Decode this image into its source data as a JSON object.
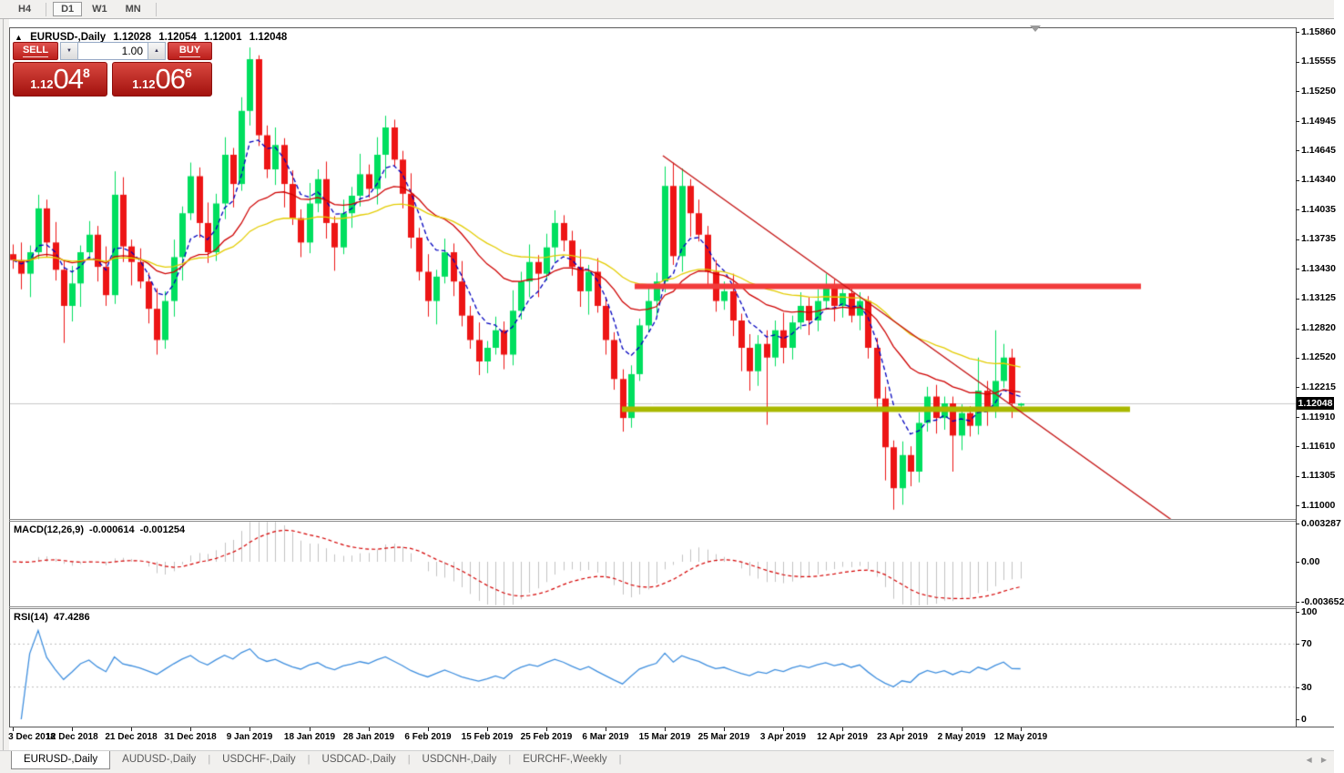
{
  "toolbar": {
    "timeframes": [
      {
        "label": "H4",
        "active": false
      },
      {
        "label": "D1",
        "active": true
      },
      {
        "label": "W1",
        "active": false
      },
      {
        "label": "MN",
        "active": false
      }
    ]
  },
  "chart": {
    "title": {
      "collapse_icon": "▲",
      "symbol": "EURUSD-,Daily",
      "open": "1.12028",
      "high": "1.12054",
      "low": "1.12001",
      "close": "1.12048"
    },
    "trade_panel": {
      "sell_label": "SELL",
      "buy_label": "BUY",
      "volume": "1.00",
      "spin_down_icon": "▼",
      "spin_up_icon": "▲",
      "sell_price": {
        "big_figure": "1.12",
        "pips": "04",
        "pipette": "8"
      },
      "buy_price": {
        "big_figure": "1.12",
        "pips": "06",
        "pipette": "6"
      }
    },
    "price_axis": {
      "ticks": [
        "1.15860",
        "1.15555",
        "1.15250",
        "1.14945",
        "1.14645",
        "1.14340",
        "1.14035",
        "1.13735",
        "1.13430",
        "1.13125",
        "1.12820",
        "1.12520",
        "1.12215",
        "1.11910",
        "1.11610",
        "1.11305",
        "1.11000"
      ],
      "current_price_label": "1.12048"
    },
    "indicator_axes": {
      "macd": [
        "0.003287",
        "0.00",
        "-0.003652"
      ],
      "rsi": [
        "100",
        "70",
        "30",
        "0"
      ]
    }
  },
  "chart_data": {
    "type": "candlestick",
    "symbol": "EURUSD",
    "timeframe": "Daily",
    "bull_color": "#00DF5F",
    "bear_color": "#ED1515",
    "current_price": 1.12048,
    "current_price_line_color": "#c9c9c9",
    "y_ticks": [
      1.1586,
      1.15555,
      1.1525,
      1.14945,
      1.14645,
      1.1434,
      1.14035,
      1.13735,
      1.1343,
      1.13125,
      1.1282,
      1.1252,
      1.12215,
      1.1191,
      1.1161,
      1.11305,
      1.11
    ],
    "time_labels": [
      "3 Dec 2018",
      "12 Dec 2018",
      "21 Dec 2018",
      "31 Dec 2018",
      "9 Jan 2019",
      "18 Jan 2019",
      "28 Jan 2019",
      "6 Feb 2019",
      "15 Feb 2019",
      "25 Feb 2019",
      "6 Mar 2019",
      "15 Mar 2019",
      "25 Mar 2019",
      "3 Apr 2019",
      "12 Apr 2019",
      "23 Apr 2019",
      "2 May 2019",
      "12 May 2019"
    ],
    "time_label_indices": [
      0,
      7,
      14,
      21,
      28,
      35,
      42,
      49,
      56,
      63,
      70,
      77,
      84,
      91,
      98,
      105,
      112,
      119
    ],
    "candles": [
      [
        1.1358,
        1.1368,
        1.1343,
        1.1352
      ],
      [
        1.1352,
        1.137,
        1.1322,
        1.1338
      ],
      [
        1.1338,
        1.1367,
        1.1314,
        1.136
      ],
      [
        1.136,
        1.1419,
        1.1353,
        1.1405
      ],
      [
        1.1405,
        1.1414,
        1.1355,
        1.137
      ],
      [
        1.137,
        1.1391,
        1.1331,
        1.1342
      ],
      [
        1.1342,
        1.1352,
        1.1267,
        1.1305
      ],
      [
        1.1305,
        1.1346,
        1.1289,
        1.1328
      ],
      [
        1.1328,
        1.1367,
        1.1304,
        1.136
      ],
      [
        1.136,
        1.1392,
        1.1353,
        1.1378
      ],
      [
        1.1378,
        1.1387,
        1.133,
        1.1345
      ],
      [
        1.1345,
        1.1366,
        1.1305,
        1.1316
      ],
      [
        1.1316,
        1.1443,
        1.1307,
        1.1419
      ],
      [
        1.1419,
        1.1437,
        1.135,
        1.1366
      ],
      [
        1.1366,
        1.1373,
        1.1326,
        1.135
      ],
      [
        1.135,
        1.1364,
        1.1323,
        1.133
      ],
      [
        1.133,
        1.1339,
        1.1287,
        1.1302
      ],
      [
        1.1302,
        1.1323,
        1.1255,
        1.127
      ],
      [
        1.127,
        1.132,
        1.1261,
        1.131
      ],
      [
        1.131,
        1.1373,
        1.1294,
        1.1355
      ],
      [
        1.1355,
        1.1407,
        1.1331,
        1.14
      ],
      [
        1.14,
        1.1452,
        1.1393,
        1.1438
      ],
      [
        1.1438,
        1.1447,
        1.1375,
        1.139
      ],
      [
        1.139,
        1.1411,
        1.1349,
        1.136
      ],
      [
        1.136,
        1.142,
        1.1351,
        1.141
      ],
      [
        1.141,
        1.1478,
        1.1394,
        1.146
      ],
      [
        1.146,
        1.1467,
        1.1406,
        1.143
      ],
      [
        1.143,
        1.1519,
        1.1423,
        1.1505
      ],
      [
        1.1505,
        1.157,
        1.149,
        1.1558
      ],
      [
        1.1558,
        1.1562,
        1.1469,
        1.148
      ],
      [
        1.148,
        1.149,
        1.1436,
        1.1445
      ],
      [
        1.1445,
        1.1488,
        1.1429,
        1.147
      ],
      [
        1.147,
        1.1477,
        1.1406,
        1.143
      ],
      [
        1.143,
        1.1444,
        1.1388,
        1.1395
      ],
      [
        1.1395,
        1.1404,
        1.1355,
        1.137
      ],
      [
        1.137,
        1.1431,
        1.1359,
        1.141
      ],
      [
        1.141,
        1.1445,
        1.1401,
        1.1435
      ],
      [
        1.1435,
        1.1453,
        1.1374,
        1.139
      ],
      [
        1.139,
        1.1397,
        1.1341,
        1.1365
      ],
      [
        1.1365,
        1.1414,
        1.1358,
        1.14
      ],
      [
        1.14,
        1.1427,
        1.1385,
        1.1418
      ],
      [
        1.1418,
        1.1461,
        1.1407,
        1.144
      ],
      [
        1.144,
        1.145,
        1.1416,
        1.1425
      ],
      [
        1.1425,
        1.1478,
        1.1409,
        1.146
      ],
      [
        1.146,
        1.15,
        1.1436,
        1.1488
      ],
      [
        1.1488,
        1.1496,
        1.1448,
        1.1455
      ],
      [
        1.1455,
        1.1464,
        1.1405,
        1.142
      ],
      [
        1.142,
        1.1441,
        1.1364,
        1.1375
      ],
      [
        1.1375,
        1.1385,
        1.1331,
        1.134
      ],
      [
        1.134,
        1.1358,
        1.1294,
        1.131
      ],
      [
        1.131,
        1.1342,
        1.1286,
        1.1335
      ],
      [
        1.1335,
        1.1374,
        1.1328,
        1.136
      ],
      [
        1.136,
        1.1369,
        1.1315,
        1.133
      ],
      [
        1.133,
        1.1351,
        1.1284,
        1.1295
      ],
      [
        1.1295,
        1.1305,
        1.1261,
        1.127
      ],
      [
        1.127,
        1.1288,
        1.1234,
        1.1248
      ],
      [
        1.1248,
        1.1269,
        1.1236,
        1.1262
      ],
      [
        1.1262,
        1.1294,
        1.1255,
        1.128
      ],
      [
        1.128,
        1.1289,
        1.124,
        1.1255
      ],
      [
        1.1255,
        1.1321,
        1.1244,
        1.13
      ],
      [
        1.13,
        1.134,
        1.1291,
        1.133
      ],
      [
        1.133,
        1.1368,
        1.1314,
        1.135
      ],
      [
        1.135,
        1.1357,
        1.1314,
        1.1338
      ],
      [
        1.1338,
        1.1379,
        1.1331,
        1.1365
      ],
      [
        1.1365,
        1.1403,
        1.135,
        1.139
      ],
      [
        1.139,
        1.1398,
        1.1361,
        1.1372
      ],
      [
        1.1372,
        1.1382,
        1.1336,
        1.1345
      ],
      [
        1.1345,
        1.1363,
        1.1304,
        1.132
      ],
      [
        1.132,
        1.1347,
        1.1296,
        1.134
      ],
      [
        1.134,
        1.1354,
        1.1298,
        1.1305
      ],
      [
        1.1305,
        1.1314,
        1.1255,
        1.127
      ],
      [
        1.127,
        1.1278,
        1.1219,
        1.123
      ],
      [
        1.123,
        1.124,
        1.1176,
        1.119
      ],
      [
        1.119,
        1.1244,
        1.118,
        1.1235
      ],
      [
        1.1235,
        1.1292,
        1.1228,
        1.1285
      ],
      [
        1.1285,
        1.1324,
        1.1278,
        1.131
      ],
      [
        1.131,
        1.1339,
        1.1295,
        1.133
      ],
      [
        1.133,
        1.1448,
        1.1319,
        1.1428
      ],
      [
        1.1428,
        1.1452,
        1.1347,
        1.1356
      ],
      [
        1.1356,
        1.1446,
        1.134,
        1.1428
      ],
      [
        1.1428,
        1.1435,
        1.1376,
        1.14
      ],
      [
        1.14,
        1.1414,
        1.1371,
        1.1378
      ],
      [
        1.1378,
        1.1387,
        1.1325,
        1.134
      ],
      [
        1.134,
        1.1352,
        1.1299,
        1.131
      ],
      [
        1.131,
        1.133,
        1.1301,
        1.132
      ],
      [
        1.132,
        1.1338,
        1.1274,
        1.129
      ],
      [
        1.129,
        1.1297,
        1.1238,
        1.1262
      ],
      [
        1.1262,
        1.1276,
        1.1218,
        1.1238
      ],
      [
        1.1238,
        1.1275,
        1.1223,
        1.1266
      ],
      [
        1.1266,
        1.128,
        1.1183,
        1.1252
      ],
      [
        1.1252,
        1.129,
        1.1243,
        1.128
      ],
      [
        1.128,
        1.1298,
        1.1246,
        1.1262
      ],
      [
        1.1262,
        1.1295,
        1.125,
        1.1288
      ],
      [
        1.1288,
        1.1319,
        1.1281,
        1.1305
      ],
      [
        1.1305,
        1.1314,
        1.1275,
        1.129
      ],
      [
        1.129,
        1.1322,
        1.1279,
        1.131
      ],
      [
        1.131,
        1.1338,
        1.1301,
        1.1325
      ],
      [
        1.1325,
        1.1332,
        1.1289,
        1.1305
      ],
      [
        1.1305,
        1.1325,
        1.1293,
        1.1318
      ],
      [
        1.1318,
        1.1324,
        1.1288,
        1.1295
      ],
      [
        1.1295,
        1.1319,
        1.128,
        1.131
      ],
      [
        1.131,
        1.1315,
        1.1251,
        1.1262
      ],
      [
        1.1262,
        1.1272,
        1.1201,
        1.121
      ],
      [
        1.121,
        1.1222,
        1.1126,
        1.116
      ],
      [
        1.116,
        1.1167,
        1.1096,
        1.1118
      ],
      [
        1.1118,
        1.1166,
        1.1101,
        1.1152
      ],
      [
        1.1152,
        1.1161,
        1.112,
        1.1135
      ],
      [
        1.1135,
        1.1196,
        1.1124,
        1.1185
      ],
      [
        1.1185,
        1.1222,
        1.1176,
        1.1212
      ],
      [
        1.1212,
        1.1224,
        1.1174,
        1.119
      ],
      [
        1.119,
        1.1212,
        1.1178,
        1.1205
      ],
      [
        1.1205,
        1.1212,
        1.1135,
        1.1172
      ],
      [
        1.1172,
        1.1204,
        1.1157,
        1.1195
      ],
      [
        1.1195,
        1.1202,
        1.1171,
        1.1182
      ],
      [
        1.1182,
        1.1252,
        1.1173,
        1.1218
      ],
      [
        1.1218,
        1.1228,
        1.1182,
        1.1198
      ],
      [
        1.1198,
        1.128,
        1.119,
        1.1228
      ],
      [
        1.1228,
        1.1266,
        1.1221,
        1.1252
      ],
      [
        1.1252,
        1.1261,
        1.119,
        1.1205
      ],
      [
        1.12028,
        1.12054,
        1.12001,
        1.12048
      ]
    ],
    "moving_averages": [
      {
        "name": "fast-ema",
        "period": 6,
        "color": "#0000BE",
        "style": "dashed"
      },
      {
        "name": "mid-ema",
        "period": 20,
        "color": "#CE0000",
        "style": "solid"
      },
      {
        "name": "slow-ema",
        "period": 40,
        "color": "#E3CC00",
        "style": "solid"
      }
    ],
    "annotations": {
      "resistance_line": {
        "price": 1.1325,
        "x_from": 697,
        "x_to": 1253,
        "color": "#F23B3B",
        "thickness": 6
      },
      "support_line": {
        "price": 1.1199,
        "x_from": 683,
        "x_to": 1241,
        "color": "#A9B800",
        "thickness": 6
      },
      "descending_trendline": {
        "x_from": 728,
        "price_from": 1.1459,
        "x_to": 1286,
        "price_to": 1.1086,
        "color": "#C41414",
        "thickness": 1.4
      }
    },
    "indicators": {
      "macd": {
        "label": "MACD(12,26,9)",
        "value_main": "-0.000614",
        "value_signal": "-0.001254",
        "fast_period": 12,
        "slow_period": 26,
        "signal_period": 9,
        "axis_max": 0.003287,
        "axis_min": -0.003652,
        "histogram_color": "#C2C2C2",
        "signal_color": "#D40000"
      },
      "rsi": {
        "label": "RSI(14)",
        "value": "47.4286",
        "period": 14,
        "levels": [
          70,
          30
        ],
        "axis": [
          100,
          70,
          30,
          0
        ],
        "line_color": "#3E8EDE",
        "level_color": "#bbbbbb"
      }
    }
  },
  "tabs": {
    "items": [
      {
        "label": "EURUSD-,Daily",
        "active": true
      },
      {
        "label": "AUDUSD-,Daily",
        "active": false
      },
      {
        "label": "USDCHF-,Daily",
        "active": false
      },
      {
        "label": "USDCAD-,Daily",
        "active": false
      },
      {
        "label": "USDCNH-,Daily",
        "active": false
      },
      {
        "label": "EURCHF-,Weekly",
        "active": false
      }
    ],
    "scroll_left": "◀",
    "scroll_right": "▶"
  }
}
